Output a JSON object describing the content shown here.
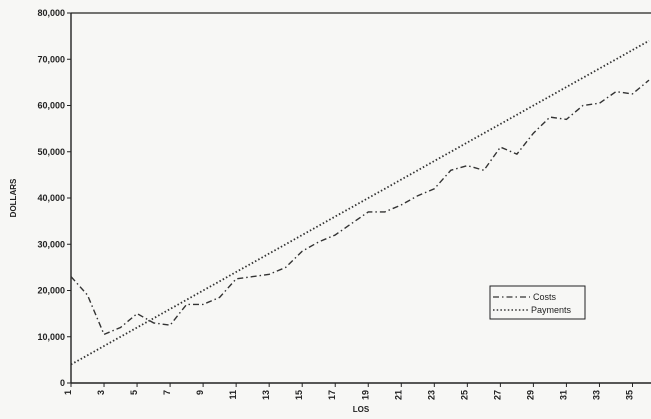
{
  "chart_data": {
    "type": "line",
    "title": "",
    "xlabel": "LOS",
    "ylabel": "DOLLARS",
    "ylim": [
      0,
      80000
    ],
    "yticks": [
      0,
      10000,
      20000,
      30000,
      40000,
      50000,
      60000,
      70000,
      80000
    ],
    "ytick_labels": [
      "0",
      "10,000",
      "20,000",
      "30,000",
      "40,000",
      "50,000",
      "60,000",
      "70,000",
      "80,000"
    ],
    "xlim": [
      1,
      36
    ],
    "xticks": [
      1,
      3,
      5,
      7,
      9,
      11,
      13,
      15,
      17,
      19,
      21,
      23,
      25,
      27,
      29,
      31,
      33,
      35
    ],
    "xtick_labels": [
      "1",
      "3",
      "5",
      "7",
      "9",
      "11",
      "13",
      "15",
      "17",
      "19",
      "21",
      "23",
      "25",
      "27",
      "29",
      "31",
      "33",
      "35"
    ],
    "grid": false,
    "legend_position": "bottom-right",
    "series": [
      {
        "name": "Costs",
        "style": "dash-dot",
        "color": "#333333",
        "x": [
          1,
          2,
          3,
          4,
          5,
          6,
          7,
          8,
          9,
          10,
          11,
          12,
          13,
          14,
          15,
          16,
          17,
          18,
          19,
          20,
          21,
          22,
          23,
          24,
          25,
          26,
          27,
          28,
          29,
          30,
          31,
          32,
          33,
          34,
          35,
          36
        ],
        "values": [
          23000,
          19000,
          10500,
          12000,
          15000,
          13000,
          12500,
          17000,
          17000,
          18500,
          22500,
          23000,
          23500,
          25000,
          28500,
          30500,
          32000,
          34500,
          37000,
          37000,
          38500,
          40500,
          42000,
          46000,
          47000,
          46000,
          51000,
          49500,
          54000,
          57500,
          57000,
          60000,
          60500,
          63000,
          62500,
          65500
        ]
      },
      {
        "name": "Payments",
        "style": "dotted",
        "color": "#333333",
        "x": [
          1,
          2,
          3,
          4,
          5,
          6,
          7,
          8,
          9,
          10,
          11,
          12,
          13,
          14,
          15,
          16,
          17,
          18,
          19,
          20,
          21,
          22,
          23,
          24,
          25,
          26,
          27,
          28,
          29,
          30,
          31,
          32,
          33,
          34,
          35,
          36
        ],
        "values": [
          4000,
          6000,
          8000,
          10000,
          12000,
          14000,
          16000,
          18000,
          20000,
          22000,
          24000,
          26000,
          28000,
          30000,
          32000,
          34000,
          36000,
          38000,
          40000,
          42000,
          44000,
          46000,
          48000,
          50000,
          52000,
          54000,
          56000,
          58000,
          60000,
          62000,
          64000,
          66000,
          68000,
          70000,
          72000,
          74000
        ]
      }
    ]
  }
}
